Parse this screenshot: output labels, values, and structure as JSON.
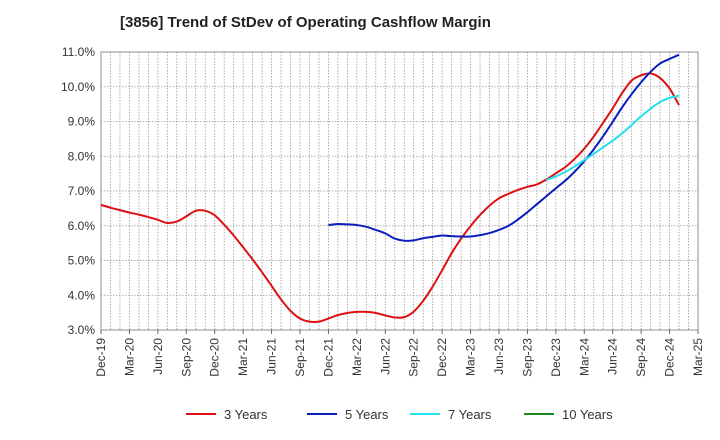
{
  "title": "[3856]  Trend of StDev of Operating Cashflow Margin",
  "chart_data": {
    "type": "line",
    "title": "[3856]  Trend of StDev of Operating Cashflow Margin",
    "xlabel": "",
    "ylabel": "",
    "ylim": [
      3.0,
      11.0
    ],
    "y_ticks": [
      "3.0%",
      "4.0%",
      "5.0%",
      "6.0%",
      "7.0%",
      "8.0%",
      "9.0%",
      "10.0%",
      "11.0%"
    ],
    "x_ticks": [
      "Dec-19",
      "Mar-20",
      "Jun-20",
      "Sep-20",
      "Dec-20",
      "Mar-21",
      "Jun-21",
      "Sep-21",
      "Dec-21",
      "Mar-22",
      "Jun-22",
      "Sep-22",
      "Dec-22",
      "Mar-23",
      "Jun-23",
      "Sep-23",
      "Dec-23",
      "Mar-24",
      "Jun-24",
      "Sep-24",
      "Dec-24",
      "Mar-25"
    ],
    "grid": true,
    "legend_position": "bottom",
    "series": [
      {
        "name": "3 Years",
        "color": "#dd1111",
        "points": [
          [
            "Dec-19",
            6.6
          ],
          [
            "Jan-20",
            6.52
          ],
          [
            "Feb-20",
            6.45
          ],
          [
            "Mar-20",
            6.38
          ],
          [
            "Apr-20",
            6.32
          ],
          [
            "May-20",
            6.25
          ],
          [
            "Jun-20",
            6.17
          ],
          [
            "Jul-20",
            6.08
          ],
          [
            "Aug-20",
            6.12
          ],
          [
            "Sep-20",
            6.27
          ],
          [
            "Oct-20",
            6.43
          ],
          [
            "Nov-20",
            6.43
          ],
          [
            "Dec-20",
            6.3
          ],
          [
            "Jan-21",
            6.03
          ],
          [
            "Feb-21",
            5.72
          ],
          [
            "Mar-21",
            5.38
          ],
          [
            "Apr-21",
            5.03
          ],
          [
            "May-21",
            4.66
          ],
          [
            "Jun-21",
            4.27
          ],
          [
            "Jul-21",
            3.88
          ],
          [
            "Aug-21",
            3.55
          ],
          [
            "Sep-21",
            3.33
          ],
          [
            "Oct-21",
            3.24
          ],
          [
            "Nov-21",
            3.24
          ],
          [
            "Dec-21",
            3.33
          ],
          [
            "Jan-22",
            3.43
          ],
          [
            "Feb-22",
            3.49
          ],
          [
            "Mar-22",
            3.52
          ],
          [
            "Apr-22",
            3.52
          ],
          [
            "May-22",
            3.49
          ],
          [
            "Jun-22",
            3.42
          ],
          [
            "Jul-22",
            3.36
          ],
          [
            "Aug-22",
            3.37
          ],
          [
            "Sep-22",
            3.53
          ],
          [
            "Oct-22",
            3.84
          ],
          [
            "Nov-22",
            4.25
          ],
          [
            "Dec-22",
            4.72
          ],
          [
            "Jan-23",
            5.21
          ],
          [
            "Feb-23",
            5.63
          ],
          [
            "Mar-23",
            5.99
          ],
          [
            "Apr-23",
            6.31
          ],
          [
            "May-23",
            6.58
          ],
          [
            "Jun-23",
            6.79
          ],
          [
            "Jul-23",
            6.92
          ],
          [
            "Aug-23",
            7.03
          ],
          [
            "Sep-23",
            7.12
          ],
          [
            "Oct-23",
            7.19
          ],
          [
            "Nov-23",
            7.33
          ],
          [
            "Dec-23",
            7.51
          ],
          [
            "Jan-24",
            7.69
          ],
          [
            "Feb-24",
            7.93
          ],
          [
            "Mar-24",
            8.22
          ],
          [
            "Apr-24",
            8.57
          ],
          [
            "May-24",
            8.97
          ],
          [
            "Jun-24",
            9.38
          ],
          [
            "Jul-24",
            9.82
          ],
          [
            "Aug-24",
            10.18
          ],
          [
            "Sep-24",
            10.33
          ],
          [
            "Oct-24",
            10.38
          ],
          [
            "Nov-24",
            10.25
          ],
          [
            "Dec-24",
            9.95
          ],
          [
            "Jan-25",
            9.47
          ]
        ]
      },
      {
        "name": "5 Years",
        "color": "#0a1ebe",
        "points": [
          [
            "Dec-21",
            6.02
          ],
          [
            "Jan-22",
            6.05
          ],
          [
            "Feb-22",
            6.04
          ],
          [
            "Mar-22",
            6.02
          ],
          [
            "Apr-22",
            5.97
          ],
          [
            "May-22",
            5.88
          ],
          [
            "Jun-22",
            5.78
          ],
          [
            "Jul-22",
            5.63
          ],
          [
            "Aug-22",
            5.57
          ],
          [
            "Sep-22",
            5.58
          ],
          [
            "Oct-22",
            5.64
          ],
          [
            "Nov-22",
            5.68
          ],
          [
            "Dec-22",
            5.72
          ],
          [
            "Jan-23",
            5.7
          ],
          [
            "Feb-23",
            5.69
          ],
          [
            "Mar-23",
            5.69
          ],
          [
            "Apr-23",
            5.73
          ],
          [
            "May-23",
            5.79
          ],
          [
            "Jun-23",
            5.88
          ],
          [
            "Jul-23",
            6.0
          ],
          [
            "Aug-23",
            6.18
          ],
          [
            "Sep-23",
            6.39
          ],
          [
            "Oct-23",
            6.62
          ],
          [
            "Nov-23",
            6.85
          ],
          [
            "Dec-23",
            7.08
          ],
          [
            "Jan-24",
            7.3
          ],
          [
            "Feb-24",
            7.56
          ],
          [
            "Mar-24",
            7.86
          ],
          [
            "Apr-24",
            8.2
          ],
          [
            "May-24",
            8.58
          ],
          [
            "Jun-24",
            8.99
          ],
          [
            "Jul-24",
            9.41
          ],
          [
            "Aug-24",
            9.79
          ],
          [
            "Sep-24",
            10.13
          ],
          [
            "Oct-24",
            10.43
          ],
          [
            "Nov-24",
            10.67
          ],
          [
            "Dec-24",
            10.8
          ],
          [
            "Jan-25",
            10.92
          ]
        ]
      },
      {
        "name": "7 Years",
        "color": "#22e0ee",
        "points": [
          [
            "Nov-23",
            7.32
          ],
          [
            "Dec-23",
            7.42
          ],
          [
            "Jan-24",
            7.55
          ],
          [
            "Feb-24",
            7.71
          ],
          [
            "Mar-24",
            7.89
          ],
          [
            "Apr-24",
            8.07
          ],
          [
            "May-24",
            8.26
          ],
          [
            "Jun-24",
            8.45
          ],
          [
            "Jul-24",
            8.66
          ],
          [
            "Aug-24",
            8.9
          ],
          [
            "Sep-24",
            9.15
          ],
          [
            "Oct-24",
            9.37
          ],
          [
            "Nov-24",
            9.56
          ],
          [
            "Dec-24",
            9.68
          ],
          [
            "Jan-25",
            9.74
          ]
        ]
      },
      {
        "name": "10 Years",
        "color": "#1a8a1a",
        "points": []
      }
    ]
  }
}
